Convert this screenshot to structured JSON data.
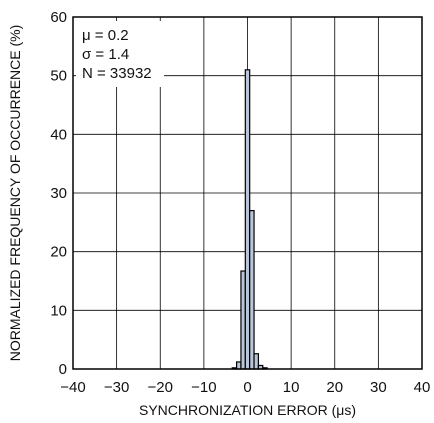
{
  "chart_data": {
    "type": "bar",
    "title": "",
    "xlabel": "SYNCHRONIZATION ERROR (μs)",
    "ylabel": "NORMALIZED FREQUENCY OF OCCURRENCE (%)",
    "xlim": [
      -40,
      40
    ],
    "ylim": [
      0,
      60
    ],
    "x_ticks": [
      -40,
      -30,
      -20,
      -10,
      0,
      10,
      20,
      30,
      40
    ],
    "x_tick_labels": [
      "−40",
      "−30",
      "−20",
      "−10",
      "0",
      "10",
      "20",
      "30",
      "40"
    ],
    "y_ticks": [
      0,
      10,
      20,
      30,
      40,
      50,
      60
    ],
    "y_tick_labels": [
      "0",
      "10",
      "20",
      "30",
      "40",
      "50",
      "60"
    ],
    "grid": true,
    "bin_width": 1,
    "bins": [
      {
        "x": -3,
        "value": 0.2
      },
      {
        "x": -2,
        "value": 1.2
      },
      {
        "x": -1,
        "value": 16.7
      },
      {
        "x": 0,
        "value": 51.0
      },
      {
        "x": 1,
        "value": 27.0
      },
      {
        "x": 2,
        "value": 2.6
      },
      {
        "x": 3,
        "value": 0.6
      },
      {
        "x": 4,
        "value": 0.2
      }
    ],
    "bar_color": "#b9c5d9",
    "bar_edge_color": "#000000",
    "annotations": [
      "μ = 0.2",
      "σ = 1.4",
      "N = 33932"
    ]
  }
}
